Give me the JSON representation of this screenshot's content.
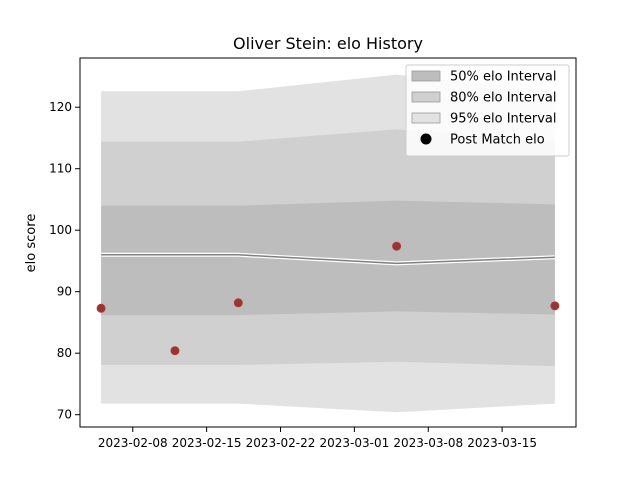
{
  "chart_data": {
    "type": "area",
    "title": "Oliver Stein: elo History",
    "xlabel": "",
    "ylabel": "elo score",
    "xlim": [
      "2023-02-03",
      "2023-03-22"
    ],
    "ylim": [
      68,
      128
    ],
    "x_ticks": [
      "2023-02-08",
      "2023-02-15",
      "2023-02-22",
      "2023-03-01",
      "2023-03-08",
      "2023-03-15"
    ],
    "y_ticks": [
      70,
      80,
      90,
      100,
      110,
      120
    ],
    "interval_x": [
      "2023-02-05",
      "2023-02-18",
      "2023-03-05",
      "2023-03-20"
    ],
    "bands": [
      {
        "name": "95% elo Interval",
        "color": "#e2e2e2",
        "lower": [
          71.8,
          71.8,
          70.4,
          71.8
        ],
        "upper": [
          122.6,
          122.6,
          125.3,
          122.6
        ]
      },
      {
        "name": "80% elo Interval",
        "color": "#d0d0d0",
        "lower": [
          78.1,
          78.1,
          78.6,
          77.9
        ],
        "upper": [
          114.4,
          114.4,
          116.4,
          114.3
        ]
      },
      {
        "name": "50% elo Interval",
        "color": "#bdbdbd",
        "lower": [
          86.2,
          86.2,
          86.8,
          86.3
        ],
        "upper": [
          104.0,
          104.0,
          104.8,
          104.2
        ]
      }
    ],
    "median_line": {
      "color": "#808080",
      "values": [
        96.0,
        96.0,
        94.6,
        95.6
      ]
    },
    "points": {
      "name": "Post Match elo",
      "x": [
        "2023-02-05",
        "2023-02-12",
        "2023-02-18",
        "2023-03-05",
        "2023-03-20"
      ],
      "y": [
        87.3,
        80.4,
        88.2,
        97.4,
        87.7
      ],
      "fill": "#8b3a3a",
      "edge": "#c03030"
    },
    "legend_position": "upper right",
    "legend": [
      {
        "label": "50% elo Interval",
        "kind": "patch",
        "color": "#bdbdbd"
      },
      {
        "label": "80% elo Interval",
        "kind": "patch",
        "color": "#d0d0d0"
      },
      {
        "label": "95% elo Interval",
        "kind": "patch",
        "color": "#e2e2e2"
      },
      {
        "label": "Post Match elo",
        "kind": "marker",
        "color": "#000000"
      }
    ]
  }
}
